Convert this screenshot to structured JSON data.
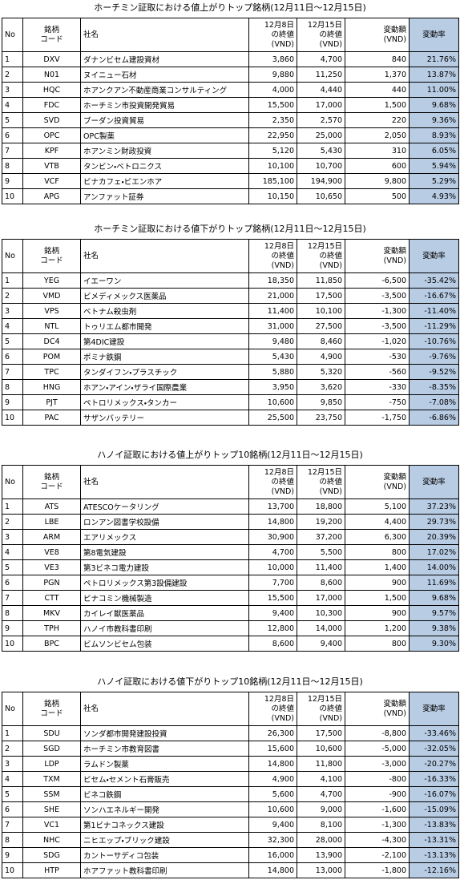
{
  "columns": [
    "No",
    "銘柄\nコード",
    "社名",
    "12月8日\nの終値\n(VND)",
    "12月15日\nの終値\n(VND)",
    "変動額\n(VND)",
    "変動率"
  ],
  "tables": [
    {
      "title": "ホーチミン証取における値上がりトップ銘柄(12月11日～12月15日)",
      "rows": [
        [
          "1",
          "DXV",
          "ダナンビセム建設資材",
          "3,860",
          "4,700",
          "840",
          "21.76%"
        ],
        [
          "2",
          "N01",
          "ヌイニュー石材",
          "9,880",
          "11,250",
          "1,370",
          "13.87%"
        ],
        [
          "3",
          "HQC",
          "ホアンクアン不動産商業コンサルティング",
          "4,000",
          "4,440",
          "440",
          "11.00%"
        ],
        [
          "4",
          "FDC",
          "ホーチミン市投資開発貿易",
          "15,500",
          "17,000",
          "1,500",
          "9.68%"
        ],
        [
          "5",
          "SVD",
          "ブーダン投資貿易",
          "2,350",
          "2,570",
          "220",
          "9.36%"
        ],
        [
          "6",
          "OPC",
          "OPC製薬",
          "22,950",
          "25,000",
          "2,050",
          "8.93%"
        ],
        [
          "7",
          "KPF",
          "ホアンミン財政投資",
          "5,120",
          "5,430",
          "310",
          "6.05%"
        ],
        [
          "8",
          "VTB",
          "タンビン・ベトロニクス",
          "10,100",
          "10,700",
          "600",
          "5.94%"
        ],
        [
          "9",
          "VCF",
          "ビナカフェ・ビエンホア",
          "185,100",
          "194,900",
          "9,800",
          "5.29%"
        ],
        [
          "10",
          "APG",
          "アンファット証券",
          "10,150",
          "10,650",
          "500",
          "4.93%"
        ]
      ]
    },
    {
      "title": "ホーチミン証取における値下がりトップ銘柄(12月11日～12月15日)",
      "rows": [
        [
          "1",
          "YEG",
          "イエーワン",
          "18,350",
          "11,850",
          "-6,500",
          "-35.42%"
        ],
        [
          "2",
          "VMD",
          "ビメディメックス医薬品",
          "21,000",
          "17,500",
          "-3,500",
          "-16.67%"
        ],
        [
          "3",
          "VPS",
          "ベトナム殺虫剤",
          "11,400",
          "10,100",
          "-1,300",
          "-11.40%"
        ],
        [
          "4",
          "NTL",
          "トゥリエム都市開発",
          "31,000",
          "27,500",
          "-3,500",
          "-11.29%"
        ],
        [
          "5",
          "DC4",
          "第4DIC建設",
          "9,480",
          "8,460",
          "-1,020",
          "-10.76%"
        ],
        [
          "6",
          "POM",
          "ポミナ鉄鋼",
          "5,430",
          "4,900",
          "-530",
          "-9.76%"
        ],
        [
          "7",
          "TPC",
          "タンダイフン・プラスチック",
          "5,880",
          "5,320",
          "-560",
          "-9.52%"
        ],
        [
          "8",
          "HNG",
          "ホアン・アイン・ザライ国際農業",
          "3,950",
          "3,620",
          "-330",
          "-8.35%"
        ],
        [
          "9",
          "PJT",
          "ペトロリメックス・タンカー",
          "10,600",
          "9,850",
          "-750",
          "-7.08%"
        ],
        [
          "10",
          "PAC",
          "サザンバッテリー",
          "25,500",
          "23,750",
          "-1,750",
          "-6.86%"
        ]
      ]
    },
    {
      "title": "ハノイ証取における値上がりトップ10銘柄(12月11日～12月15日)",
      "rows": [
        [
          "1",
          "ATS",
          "ATESCOケータリング",
          "13,700",
          "18,800",
          "5,100",
          "37.23%"
        ],
        [
          "2",
          "LBE",
          "ロンアン図書学校設備",
          "14,800",
          "19,200",
          "4,400",
          "29.73%"
        ],
        [
          "3",
          "ARM",
          "エアリメックス",
          "30,900",
          "37,200",
          "6,300",
          "20.39%"
        ],
        [
          "4",
          "VE8",
          "第8電気建設",
          "4,700",
          "5,500",
          "800",
          "17.02%"
        ],
        [
          "5",
          "VE3",
          "第3ビネコ電力建設",
          "10,000",
          "11,400",
          "1,400",
          "14.00%"
        ],
        [
          "6",
          "PGN",
          "ペトロリメックス第3設備建設",
          "7,700",
          "8,600",
          "900",
          "11.69%"
        ],
        [
          "7",
          "CTT",
          "ビナコミン機械製造",
          "15,500",
          "17,000",
          "1,500",
          "9.68%"
        ],
        [
          "8",
          "MKV",
          "カイレイ獣医薬品",
          "9,400",
          "10,300",
          "900",
          "9.57%"
        ],
        [
          "9",
          "TPH",
          "ハノイ市教科書印刷",
          "12,800",
          "14,000",
          "1,200",
          "9.38%"
        ],
        [
          "10",
          "BPC",
          "ビムソンビセム包装",
          "8,600",
          "9,400",
          "800",
          "9.30%"
        ]
      ]
    },
    {
      "title": "ハノイ証取における値下がりトップ10銘柄(12月11日～12月15日)",
      "rows": [
        [
          "1",
          "SDU",
          "ソンダ都市開発建設投資",
          "26,300",
          "17,500",
          "-8,800",
          "-33.46%"
        ],
        [
          "2",
          "SGD",
          "ホーチミン市教育図書",
          "15,600",
          "10,600",
          "-5,000",
          "-32.05%"
        ],
        [
          "3",
          "LDP",
          "ラムドン製薬",
          "14,800",
          "11,800",
          "-3,000",
          "-20.27%"
        ],
        [
          "4",
          "TXM",
          "ビセム・セメント石膏販売",
          "4,900",
          "4,100",
          "-800",
          "-16.33%"
        ],
        [
          "5",
          "SSM",
          "ビネコ鉄鋼",
          "5,600",
          "4,700",
          "-900",
          "-16.07%"
        ],
        [
          "6",
          "SHE",
          "ソンハエネルギー開発",
          "10,600",
          "9,000",
          "-1,600",
          "-15.09%"
        ],
        [
          "7",
          "VC1",
          "第1ビナコネックス建設",
          "9,400",
          "8,100",
          "-1,300",
          "-13.83%"
        ],
        [
          "8",
          "NHC",
          "ニヒエップ・ブリック建設",
          "32,300",
          "28,000",
          "-4,300",
          "-13.31%"
        ],
        [
          "9",
          "SDG",
          "カントーサディコ包装",
          "16,000",
          "13,900",
          "-2,100",
          "-13.13%"
        ],
        [
          "10",
          "HTP",
          "ホアファット教科書印刷",
          "14,800",
          "13,000",
          "-1,800",
          "-12.16%"
        ]
      ]
    }
  ]
}
